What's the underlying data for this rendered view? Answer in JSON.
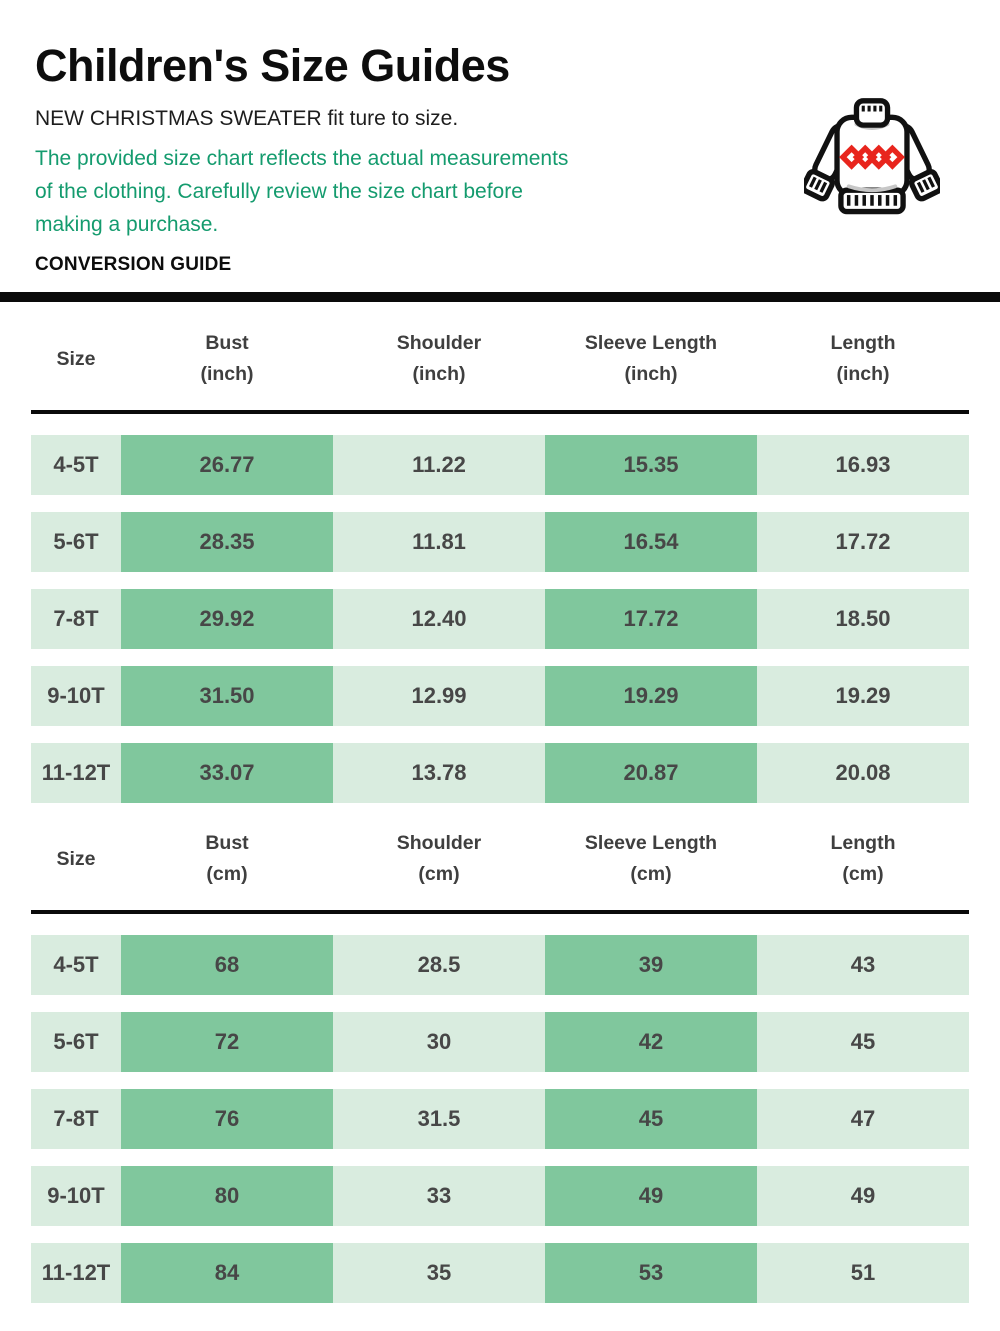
{
  "header": {
    "title": "Children's Size Guides",
    "subtitle": "NEW CHRISTMAS SWEATER fit ture to size.",
    "note_lines": [
      "The provided size chart reflects the actual measurements",
      "of the clothing. Carefully review the size chart before",
      "making a purchase."
    ],
    "section_label": "CONVERSION GUIDE"
  },
  "icons": {
    "sweater": "christmas-sweater-icon"
  },
  "colors": {
    "note_green": "#149b6e",
    "cell_green_dark": "#80c79d",
    "cell_green_light": "#d9ecdf",
    "cell_text": "#474747",
    "divider_black": "#0a0a0a",
    "diamond_red": "#e8251d"
  },
  "tables": [
    {
      "unit": "inch",
      "columns": [
        {
          "label": "Size",
          "unit": ""
        },
        {
          "label": "Bust",
          "unit": "(inch)"
        },
        {
          "label": "Shoulder",
          "unit": "(inch)"
        },
        {
          "label": "Sleeve Length",
          "unit": "(inch)"
        },
        {
          "label": "Length",
          "unit": "(inch)"
        }
      ],
      "rows": [
        {
          "size": "4-5T",
          "values": [
            "26.77",
            "11.22",
            "15.35",
            "16.93"
          ]
        },
        {
          "size": "5-6T",
          "values": [
            "28.35",
            "11.81",
            "16.54",
            "17.72"
          ]
        },
        {
          "size": "7-8T",
          "values": [
            "29.92",
            "12.40",
            "17.72",
            "18.50"
          ]
        },
        {
          "size": "9-10T",
          "values": [
            "31.50",
            "12.99",
            "19.29",
            "19.29"
          ]
        },
        {
          "size": "11-12T",
          "values": [
            "33.07",
            "13.78",
            "20.87",
            "20.08"
          ]
        }
      ]
    },
    {
      "unit": "cm",
      "columns": [
        {
          "label": "Size",
          "unit": ""
        },
        {
          "label": "Bust",
          "unit": "(cm)"
        },
        {
          "label": "Shoulder",
          "unit": "(cm)"
        },
        {
          "label": "Sleeve Length",
          "unit": "(cm)"
        },
        {
          "label": "Length",
          "unit": "(cm)"
        }
      ],
      "rows": [
        {
          "size": "4-5T",
          "values": [
            "68",
            "28.5",
            "39",
            "43"
          ]
        },
        {
          "size": "5-6T",
          "values": [
            "72",
            "30",
            "42",
            "45"
          ]
        },
        {
          "size": "7-8T",
          "values": [
            "76",
            "31.5",
            "45",
            "47"
          ]
        },
        {
          "size": "9-10T",
          "values": [
            "80",
            "33",
            "49",
            "49"
          ]
        },
        {
          "size": "11-12T",
          "values": [
            "84",
            "35",
            "53",
            "51"
          ]
        }
      ]
    }
  ]
}
